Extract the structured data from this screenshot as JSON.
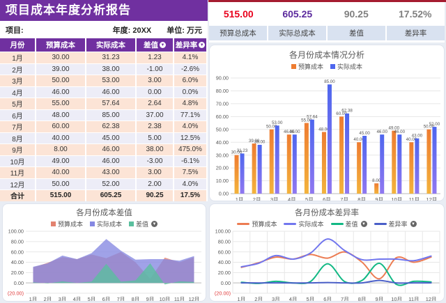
{
  "header": {
    "title": "项目成本年度分析报告",
    "project_label": "项目:",
    "year_label": "年度: 20XX",
    "unit_label": "单位: 万元"
  },
  "table": {
    "headers": [
      {
        "label": "月份",
        "sortable": false
      },
      {
        "label": "预算成本",
        "sortable": false
      },
      {
        "label": "实际成本",
        "sortable": false
      },
      {
        "label": "差值",
        "sortable": true
      },
      {
        "label": "差异率",
        "sortable": true
      }
    ],
    "rows": [
      [
        "1月",
        "30.00",
        "31.23",
        "1.23",
        "4.1%"
      ],
      [
        "2月",
        "39.00",
        "38.00",
        "-1.00",
        "-2.6%"
      ],
      [
        "3月",
        "50.00",
        "53.00",
        "3.00",
        "6.0%"
      ],
      [
        "4月",
        "46.00",
        "46.00",
        "0.00",
        "0.0%"
      ],
      [
        "5月",
        "55.00",
        "57.64",
        "2.64",
        "4.8%"
      ],
      [
        "6月",
        "48.00",
        "85.00",
        "37.00",
        "77.1%"
      ],
      [
        "7月",
        "60.00",
        "62.38",
        "2.38",
        "4.0%"
      ],
      [
        "8月",
        "40.00",
        "45.00",
        "5.00",
        "12.5%"
      ],
      [
        "9月",
        "8.00",
        "46.00",
        "38.00",
        "475.0%"
      ],
      [
        "10月",
        "49.00",
        "46.00",
        "-3.00",
        "-6.1%"
      ],
      [
        "11月",
        "40.00",
        "43.00",
        "3.00",
        "7.5%"
      ],
      [
        "12月",
        "50.00",
        "52.00",
        "2.00",
        "4.0%"
      ]
    ],
    "total_row": [
      "合计",
      "515.00",
      "605.25",
      "90.25",
      "17.5%"
    ]
  },
  "summary": {
    "cards": [
      {
        "value": "515.00",
        "label": "预算总成本",
        "value_color": "#e8001c"
      },
      {
        "value": "605.25",
        "label": "实际总成本",
        "value_color": "#5b2a9d"
      },
      {
        "value": "90.25",
        "label": "差值",
        "value_color": "#7f7f7f"
      },
      {
        "value": "17.52%",
        "label": "差异率",
        "value_color": "#7f7f7f"
      }
    ]
  },
  "icons": {
    "sort": "▼"
  },
  "colors": {
    "header_purple": "#7030a0",
    "row_peach": "#fce4d6",
    "row_lavender": "#ededf7",
    "negative_tick": "#e03a3a",
    "axis_label": "#595959"
  },
  "chart_data": [
    {
      "id": "bar",
      "type": "bar",
      "title": "各月份成本情况分析",
      "categories": [
        "1月",
        "2月",
        "3月",
        "4月",
        "5月",
        "6月",
        "7月",
        "8月",
        "9月",
        "10月",
        "11月",
        "12月"
      ],
      "series": [
        {
          "name": "预算成本",
          "sortable": false,
          "values": [
            30,
            39,
            50,
            46,
            55,
            48,
            60,
            40,
            8,
            49,
            40,
            50
          ],
          "labels": [
            "30.00",
            "39.00",
            "50.00",
            "46.00",
            "55.00",
            "48.00",
            "60.00",
            "40.00",
            "8.00",
            "49.00",
            "40.00",
            "50.00"
          ],
          "color_top": "#ee7c31",
          "color_bottom": "#f3b33c"
        },
        {
          "name": "实际成本",
          "sortable": false,
          "values": [
            31.23,
            38,
            53,
            46,
            57.64,
            85,
            62.38,
            45,
            46,
            46,
            43,
            52
          ],
          "labels": [
            "31.23",
            "38.00",
            "53.00",
            "46.00",
            "57.64",
            "85.00",
            "62.38",
            "45.00",
            "46.00",
            "46.00",
            "43.00",
            "52.00"
          ],
          "color_top": "#4e66ee",
          "color_bottom": "#9078f0"
        }
      ],
      "ylim": [
        0,
        90
      ],
      "ytick_step": 10,
      "grid": "horizontal",
      "legend_position": "top"
    },
    {
      "id": "area",
      "type": "area",
      "title": "各月份成本差值",
      "categories": [
        "1月",
        "2月",
        "3月",
        "4月",
        "5月",
        "6月",
        "7月",
        "8月",
        "9月",
        "10月",
        "11月",
        "12月"
      ],
      "series": [
        {
          "name": "预算成本",
          "sortable": false,
          "values": [
            30,
            39,
            50,
            46,
            55,
            48,
            60,
            40,
            8,
            49,
            40,
            50
          ],
          "color": "#e2826f"
        },
        {
          "name": "实际成本",
          "sortable": false,
          "values": [
            31.23,
            38,
            53,
            46,
            57.64,
            85,
            62.38,
            45,
            46,
            46,
            43,
            52
          ],
          "color": "#8588e2"
        },
        {
          "name": "差值",
          "sortable": true,
          "values": [
            1.23,
            -1,
            3,
            0,
            2.64,
            37,
            2.38,
            5,
            38,
            -3,
            3,
            2
          ],
          "color": "#5abf9e"
        }
      ],
      "ylim": [
        -20,
        100
      ],
      "ytick_step": 20,
      "grid": "horizontal",
      "legend_position": "top"
    },
    {
      "id": "rate",
      "type": "line",
      "title": "各月份成本差异率",
      "categories": [
        "1月",
        "2月",
        "3月",
        "4月",
        "5月",
        "6月",
        "7月",
        "8月",
        "9月",
        "10月",
        "11月",
        "12月"
      ],
      "series": [
        {
          "name": "预算成本",
          "sortable": false,
          "values": [
            30,
            39,
            50,
            46,
            55,
            48,
            60,
            40,
            8,
            49,
            40,
            50
          ],
          "color": "#ec7c52"
        },
        {
          "name": "实际成本",
          "sortable": false,
          "values": [
            31.23,
            38,
            53,
            46,
            57.64,
            85,
            62.38,
            45,
            46,
            46,
            43,
            52
          ],
          "color": "#7176ee"
        },
        {
          "name": "差值",
          "sortable": true,
          "values": [
            1.23,
            -1,
            3,
            0,
            2.64,
            37,
            2.38,
            5,
            38,
            -3,
            3,
            2
          ],
          "color": "#12b884"
        },
        {
          "name": "差异率",
          "sortable": true,
          "values": [
            0.04,
            -0.03,
            0.06,
            0,
            0.05,
            0.77,
            0.04,
            0.13,
            4.75,
            -0.06,
            0.08,
            0.04
          ],
          "color": "#4a5fc8"
        }
      ],
      "ylim": [
        -20,
        100
      ],
      "ytick_step": 20,
      "grid": "both",
      "smooth": true,
      "legend_position": "top"
    }
  ]
}
